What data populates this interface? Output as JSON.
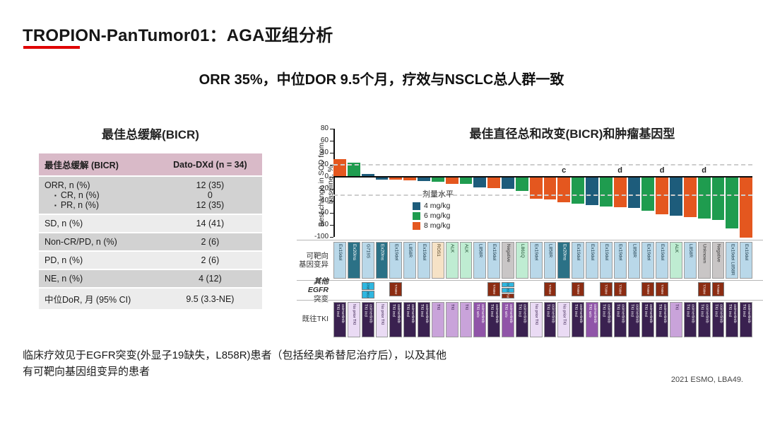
{
  "title": "TROPION-PanTumor01：AGA亚组分析",
  "subtitle": "ORR 35%，中位DOR 9.5个月，疗效与NSCLC总人群一致",
  "footnote": {
    "line1": "临床疗效见于EGFR突变(外显子19缺失，L858R)患者（包括经奥希替尼治疗后），以及其他",
    "line2": "有可靶向基因组变异的患者"
  },
  "citation": "2021 ESMO, LBA49.",
  "table": {
    "title": "最佳总缓解(BICR)",
    "header": [
      "最佳总缓解 (BICR)",
      "Dato-DXd (n = 34)"
    ],
    "rows": [
      {
        "label": "ORR, n (%)",
        "sublabels": [
          "CR, n (%)",
          "PR, n (%)"
        ],
        "values": [
          "12 (35)",
          "0",
          "12 (35)"
        ],
        "shade": "dark"
      },
      {
        "label": "SD, n (%)",
        "values": [
          "14 (41)"
        ],
        "shade": "light"
      },
      {
        "label": "Non-CR/PD, n (%)",
        "values": [
          "2 (6)"
        ],
        "shade": "dark"
      },
      {
        "label": "PD, n (%)",
        "values": [
          "2 (6)"
        ],
        "shade": "light"
      },
      {
        "label": "NE, n (%)",
        "values": [
          "4 (12)"
        ],
        "shade": "dark"
      },
      {
        "label": "中位DoR, 月 (95% CI)",
        "values": [
          "9.5 (3.3-NE)"
        ],
        "shade": "light"
      }
    ]
  },
  "chart_data": {
    "type": "bar",
    "title": "最佳直径总和改变(BICR)和肿瘤基因型",
    "ylabel_line1": "Best change in SOD from",
    "ylabel_line2": "baseline, %",
    "ylim": [
      -100,
      80
    ],
    "yticks": [
      80,
      60,
      40,
      20,
      0,
      -20,
      -40,
      -60,
      -80,
      -100
    ],
    "reference_lines": [
      20,
      -30
    ],
    "grid": false,
    "legend": {
      "title": "剂量水平",
      "position": "inside-left",
      "items": [
        {
          "label": "4 mg/kg",
          "key": "4"
        },
        {
          "label": "6 mg/kg",
          "key": "6"
        },
        {
          "label": "8 mg/kg",
          "key": "8"
        }
      ]
    },
    "annotation_row_labels": {
      "genotype_l1": "可靶向",
      "genotype_l2": "基因变异",
      "egfr_l1": "其他EGFR",
      "egfr_l2": "突变",
      "tki": "既往TKI"
    },
    "bars": [
      {
        "value": 30,
        "dose": "8",
        "genotype": "Ex19del",
        "gkey": "egfr",
        "other_egfr": [],
        "tki": "TKI incl osimertinib",
        "tkey": "incl",
        "note": ""
      },
      {
        "value": 23,
        "dose": "6",
        "genotype": "Ex20ins",
        "gkey": "ex20",
        "other_egfr": [],
        "tki": "No prior TKI",
        "tkey": "none",
        "note": ""
      },
      {
        "value": 5,
        "dose": "4",
        "genotype": "G719S",
        "gkey": "egfr",
        "other_egfr": [
          {
            "label": "S768I",
            "key": "cyan"
          },
          {
            "label": "L861Q",
            "key": "cyan"
          }
        ],
        "tki": "TKI incl osimertinib",
        "tkey": "incl",
        "note": ""
      },
      {
        "value": -3,
        "dose": "4",
        "genotype": "Ex20ins",
        "gkey": "ex20",
        "other_egfr": [],
        "tki": "No prior TKI",
        "tkey": "none",
        "note": ""
      },
      {
        "value": -4,
        "dose": "8",
        "genotype": "Ex19del",
        "gkey": "egfr",
        "other_egfr": [
          {
            "label": "T790M",
            "key": "red"
          }
        ],
        "tki": "TKI incl osimertinib",
        "tkey": "incl",
        "note": ""
      },
      {
        "value": -5,
        "dose": "8",
        "genotype": "L858R",
        "gkey": "egfr",
        "other_egfr": [],
        "tki": "TKI incl osimertinib",
        "tkey": "incl",
        "note": ""
      },
      {
        "value": -6,
        "dose": "4",
        "genotype": "Ex19del",
        "gkey": "egfr",
        "other_egfr": [],
        "tki": "TKI incl osimertinib",
        "tkey": "incl",
        "note": ""
      },
      {
        "value": -7,
        "dose": "6",
        "genotype": "ROS1",
        "gkey": "ros1",
        "other_egfr": [],
        "tki": "TKI",
        "tkey": "tki",
        "note": ""
      },
      {
        "value": -10,
        "dose": "8",
        "genotype": "ALK",
        "gkey": "alk",
        "other_egfr": [],
        "tki": "TKI",
        "tkey": "tki",
        "note": ""
      },
      {
        "value": -11,
        "dose": "6",
        "genotype": "ALK",
        "gkey": "alk",
        "other_egfr": [],
        "tki": "TKI",
        "tkey": "tki",
        "note": ""
      },
      {
        "value": -16,
        "dose": "4",
        "genotype": "L858R",
        "gkey": "egfr",
        "other_egfr": [],
        "tki": "TKI w/o osimertinib",
        "tkey": "wo",
        "note": ""
      },
      {
        "value": -18,
        "dose": "8",
        "genotype": "Ex19del",
        "gkey": "egfr",
        "other_egfr": [
          {
            "label": "T790M",
            "key": "red"
          }
        ],
        "tki": "TKI incl osimertinib",
        "tkey": "incl",
        "note": ""
      },
      {
        "value": -19,
        "dose": "4",
        "genotype": "Negative",
        "gkey": "na",
        "other_egfr": [
          {
            "label": "C797S",
            "key": "cyan"
          },
          {
            "label": "L858R",
            "key": "cyan"
          },
          {
            "label": "T790M",
            "key": "red"
          }
        ],
        "tki": "TKI w/o osimertinib",
        "tkey": "wo",
        "note": ""
      },
      {
        "value": -22,
        "dose": "6",
        "genotype": "L861Q",
        "gkey": "alk",
        "other_egfr": [],
        "tki": "TKI incl osimertinib",
        "tkey": "incl",
        "note": ""
      },
      {
        "value": -35,
        "dose": "8",
        "genotype": "Ex19del",
        "gkey": "egfr",
        "other_egfr": [],
        "tki": "No prior TKI",
        "tkey": "none",
        "note": ""
      },
      {
        "value": -37,
        "dose": "8",
        "genotype": "L858R",
        "gkey": "egfr",
        "other_egfr": [
          {
            "label": "T790M",
            "key": "red"
          }
        ],
        "tki": "TKI incl osimertinib",
        "tkey": "incl",
        "note": ""
      },
      {
        "value": -41,
        "dose": "8",
        "genotype": "Ex20ins",
        "gkey": "ex20",
        "other_egfr": [],
        "tki": "No prior TKI",
        "tkey": "none",
        "note": "c"
      },
      {
        "value": -44,
        "dose": "6",
        "genotype": "Ex19del",
        "gkey": "egfr",
        "other_egfr": [
          {
            "label": "T790M",
            "key": "red"
          }
        ],
        "tki": "TKI incl osimertinib",
        "tkey": "incl",
        "note": ""
      },
      {
        "value": -46,
        "dose": "4",
        "genotype": "Ex19del",
        "gkey": "egfr",
        "other_egfr": [],
        "tki": "TKI w/o osimertinib",
        "tkey": "wo",
        "note": ""
      },
      {
        "value": -48,
        "dose": "6",
        "genotype": "Ex19del",
        "gkey": "egfr",
        "other_egfr": [
          {
            "label": "T790M",
            "key": "red"
          }
        ],
        "tki": "TKI incl osimertinib",
        "tkey": "incl",
        "note": ""
      },
      {
        "value": -49,
        "dose": "8",
        "genotype": "Ex19del",
        "gkey": "egfr",
        "other_egfr": [
          {
            "label": "T790M",
            "key": "red"
          }
        ],
        "tki": "TKI incl osimertinib",
        "tkey": "incl",
        "note": "d"
      },
      {
        "value": -51,
        "dose": "4",
        "genotype": "L858R",
        "gkey": "egfr",
        "other_egfr": [],
        "tki": "TKI incl osimertinib",
        "tkey": "incl",
        "note": ""
      },
      {
        "value": -55,
        "dose": "6",
        "genotype": "Ex19del",
        "gkey": "egfr",
        "other_egfr": [
          {
            "label": "T790M",
            "key": "red"
          }
        ],
        "tki": "TKI incl osimertinib",
        "tkey": "incl",
        "note": ""
      },
      {
        "value": -61,
        "dose": "8",
        "genotype": "Ex19del",
        "gkey": "egfr",
        "other_egfr": [
          {
            "label": "T790M",
            "key": "red"
          }
        ],
        "tki": "TKI incl osimertinib",
        "tkey": "incl",
        "note": "d"
      },
      {
        "value": -64,
        "dose": "4",
        "genotype": "ALK",
        "gkey": "alk",
        "other_egfr": [],
        "tki": "TKI",
        "tkey": "tki",
        "note": ""
      },
      {
        "value": -66,
        "dose": "8",
        "genotype": "L858R",
        "gkey": "egfr",
        "other_egfr": [],
        "tki": "TKI incl osimertinib",
        "tkey": "incl",
        "note": ""
      },
      {
        "value": -68,
        "dose": "6",
        "genotype": "Unknown",
        "gkey": "na",
        "other_egfr": [
          {
            "label": "T790M",
            "key": "red"
          }
        ],
        "tki": "TKI incl osimertinib",
        "tkey": "incl",
        "note": "d"
      },
      {
        "value": -70,
        "dose": "6",
        "genotype": "Negative",
        "gkey": "na",
        "other_egfr": [
          {
            "label": "T790M",
            "key": "red"
          }
        ],
        "tki": "TKI incl osimertinib",
        "tkey": "incl",
        "note": ""
      },
      {
        "value": -85,
        "dose": "6",
        "genotype": "Ex19del L858R",
        "gkey": "egfr",
        "other_egfr": [],
        "tki": "TKI incl osimertinib",
        "tkey": "incl",
        "note": ""
      },
      {
        "value": -100,
        "dose": "8",
        "genotype": "Ex19del",
        "gkey": "egfr",
        "other_egfr": [],
        "tki": "TKI incl osimertinib",
        "tkey": "incl",
        "note": ""
      }
    ]
  },
  "colors": {
    "accent_red": "#e00000",
    "dose": {
      "4": "#1d5c7b",
      "6": "#1f9c4f",
      "8": "#e4571f"
    },
    "genotype": {
      "egfr": {
        "bg": "#b9d8e9",
        "fg": "#1c3a4a"
      },
      "ex20": {
        "bg": "#2b7186",
        "fg": "#ffffff"
      },
      "ros1": {
        "bg": "#f6e2c6",
        "fg": "#4a3a1c"
      },
      "alk": {
        "bg": "#bfecd2",
        "fg": "#1c4a2e"
      },
      "na": {
        "bg": "#c9c6c6",
        "fg": "#333333"
      }
    },
    "other_egfr": {
      "red": {
        "bg": "#8c2c12",
        "fg": "#ffffff"
      },
      "cyan": {
        "bg": "#2fb7e0",
        "fg": "#10303c"
      }
    },
    "tki": {
      "incl": {
        "bg": "#3a2150",
        "fg": "#ffffff"
      },
      "wo": {
        "bg": "#9055a8",
        "fg": "#ffffff"
      },
      "tki": {
        "bg": "#c9a3da",
        "fg": "#3a2150"
      },
      "none": {
        "bg": "#eadbf4",
        "fg": "#3a2150"
      }
    }
  }
}
